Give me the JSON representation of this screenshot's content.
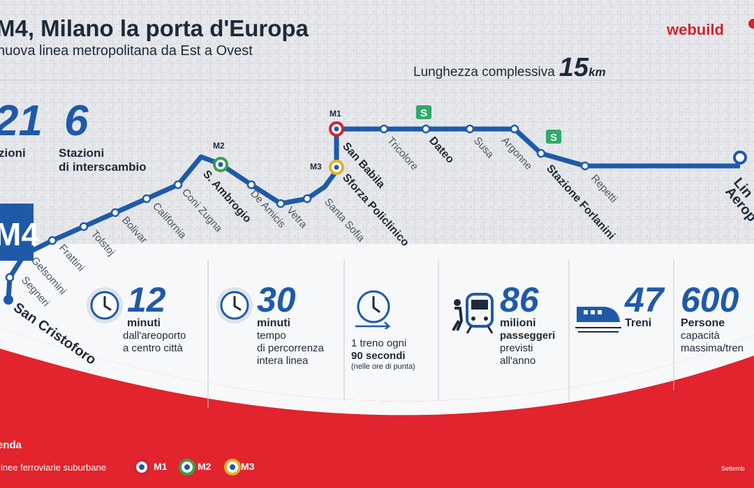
{
  "header": {
    "title": "M4, Milano la porta d'Europa",
    "subtitle": "nuova linea metropolitana da Est a Ovest",
    "length_label": "Lunghezza complessiva",
    "length_value": "15",
    "length_unit": "km",
    "logo": "webuild"
  },
  "summary": {
    "stations_value": "21",
    "stations_label": "zioni",
    "interchange_value": "6",
    "interchange_label_1": "Stazioni",
    "interchange_label_2": "di interscambio"
  },
  "line": {
    "badge": "M4",
    "color": "#1f5aa8",
    "end_label_1": "Lin",
    "end_label_2": "Aerop",
    "stations": [
      "San Cristoforo",
      "Segneri",
      "Gelsomini",
      "Frattini",
      "Tolstoj",
      "Bolivar",
      "California",
      "Coni Zugna",
      "S. Ambrogio",
      "De Amicis",
      "Vetra",
      "Santa Sofia",
      "Sforza Policlinico",
      "San Babila",
      "Tricolore",
      "Dateo",
      "Susa",
      "Argonne",
      "Stazione Forlanini",
      "Repetti"
    ],
    "interchange_tags": {
      "m1": "M1",
      "m2": "M2",
      "m3": "M3",
      "s1": "S",
      "s2": "S"
    },
    "colors": {
      "m1": "#d32230",
      "m2": "#3aa14a",
      "m3": "#e0b32b",
      "suburban": "#2eaa6a"
    }
  },
  "stats": [
    {
      "value": "12",
      "unit": "minuti",
      "desc_1": "dall'areoporto",
      "desc_2": "a centro città",
      "icon": "clock-icon"
    },
    {
      "value": "30",
      "unit": "minuti",
      "desc_1": "tempo",
      "desc_2": "di percorrenza",
      "desc_3": "intera linea",
      "icon": "clock-icon"
    },
    {
      "line_1": "1 treno ogni",
      "line_2": "90 secondi",
      "note": "(nelle ore di punta)",
      "icon": "clock-arrow-icon"
    },
    {
      "value": "86",
      "unit": "milioni",
      "desc_1": "passeggeri",
      "desc_2": "previsti",
      "desc_3": "all'anno",
      "icon": "passenger-train-icon"
    },
    {
      "value": "47",
      "unit": "Treni",
      "icon": "high-speed-train-icon"
    },
    {
      "value": "600",
      "unit": "Persone",
      "desc_1": "capacità",
      "desc_2": "massima/tren",
      "icon": "none"
    }
  ],
  "legend": {
    "title": "enda",
    "suburban_label": "linee ferroviarie suburbane",
    "m1": "M1",
    "m2": "M2",
    "m3": "M3"
  },
  "footer": "Settemb"
}
